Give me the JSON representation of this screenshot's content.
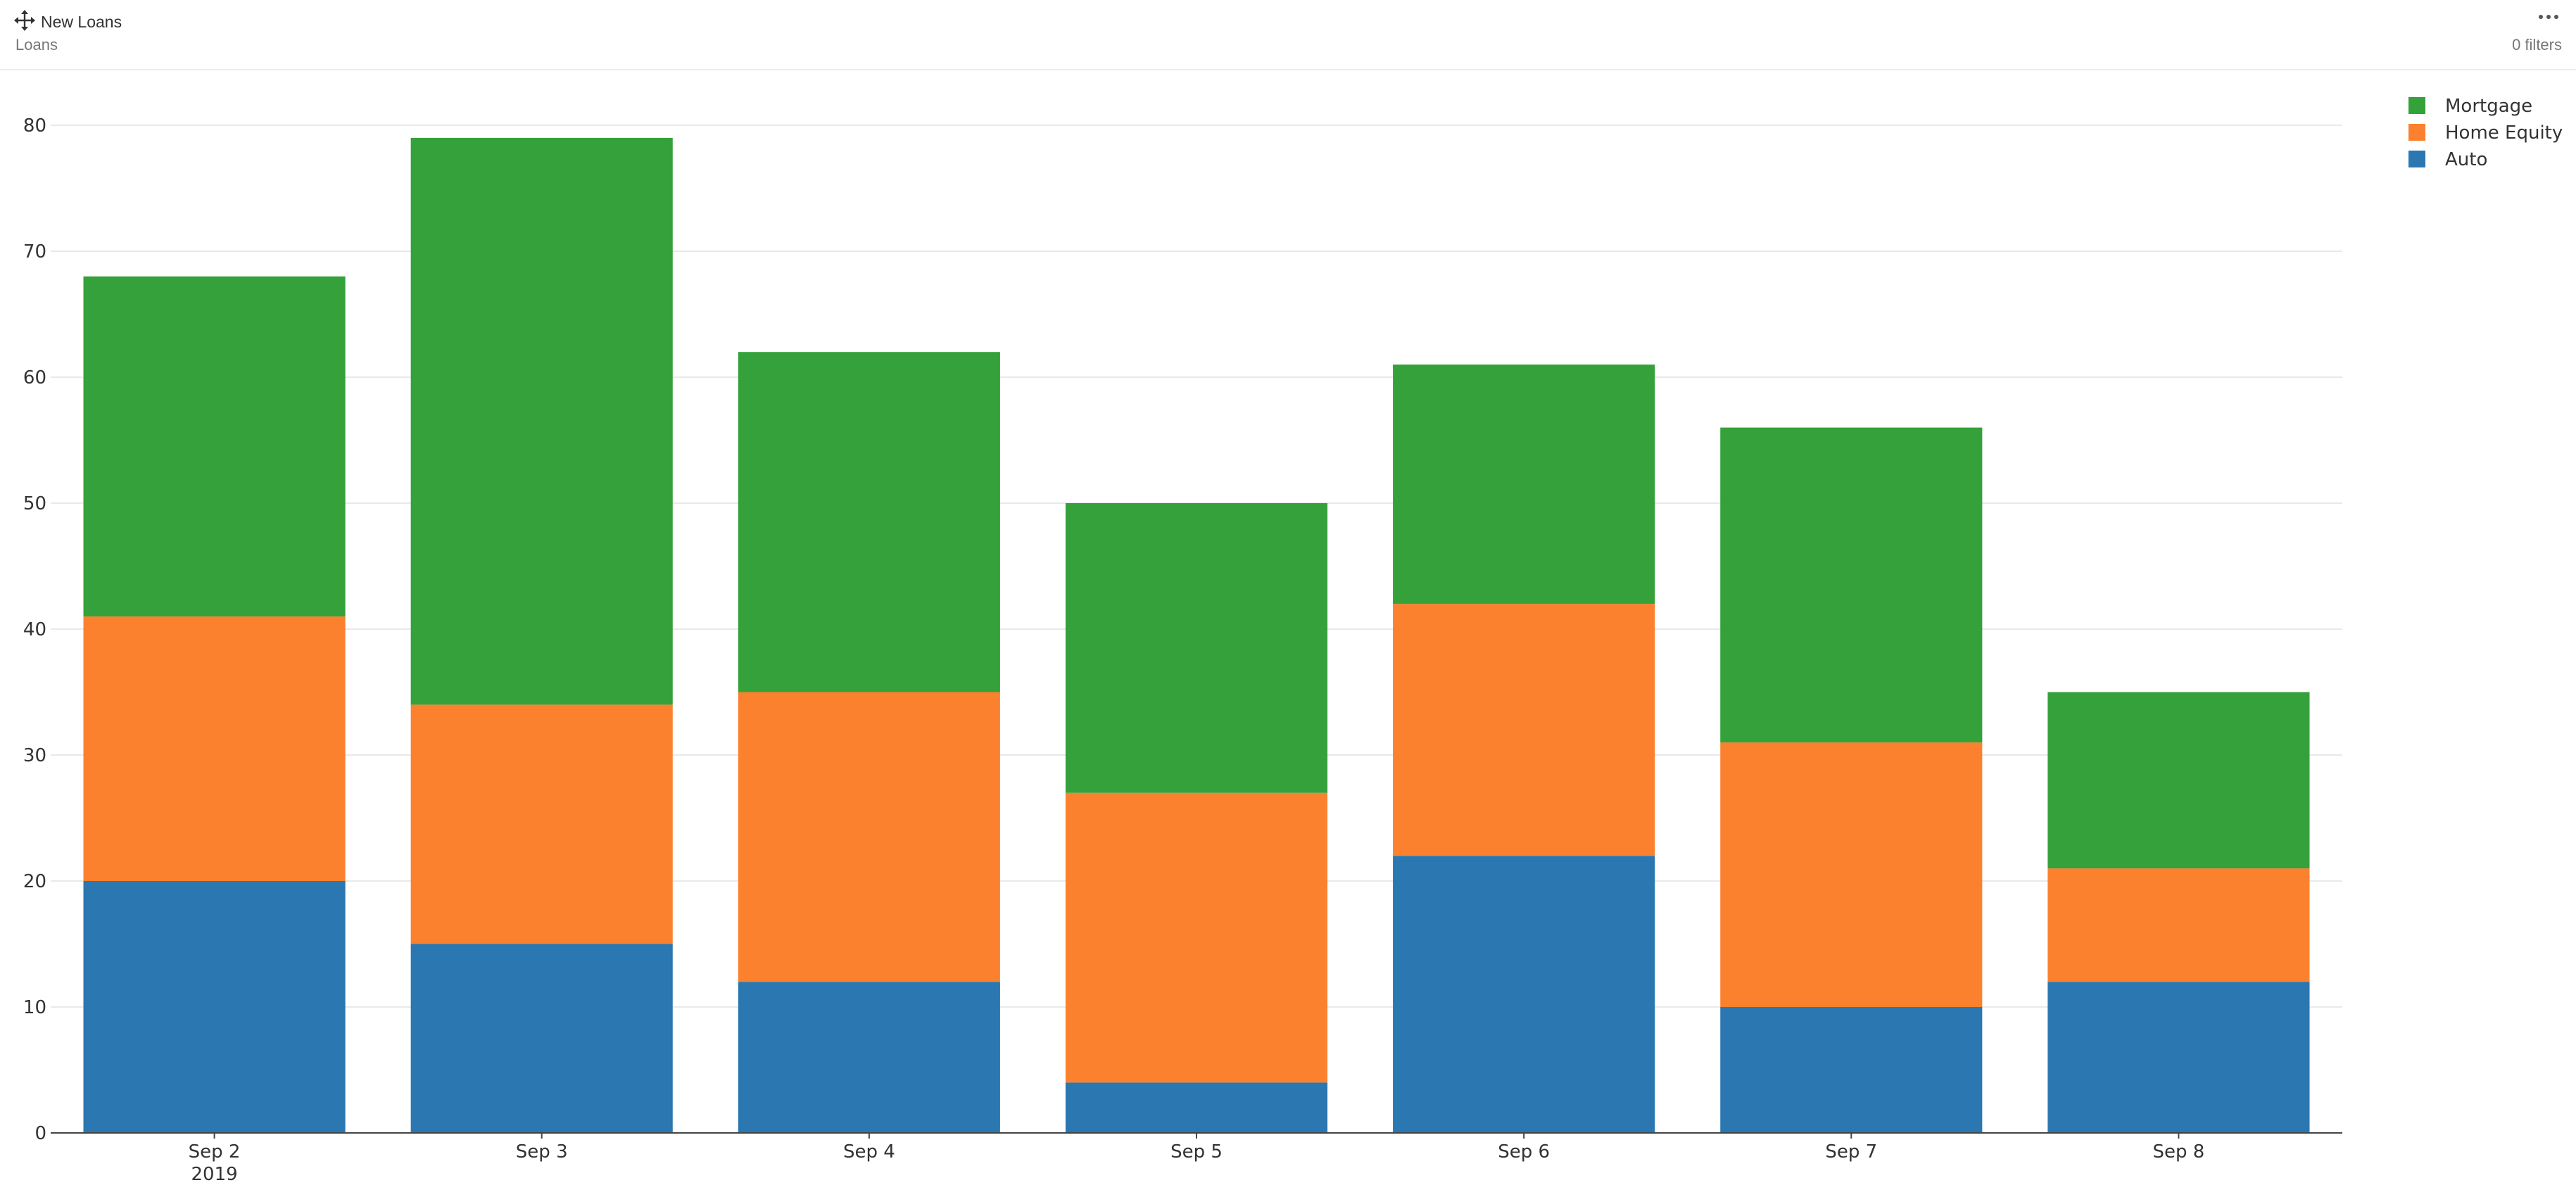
{
  "header": {
    "title": "New Loans",
    "subtitle": "Loans",
    "filters_label": "0 filters",
    "move_icon": "move-icon",
    "menu_icon": "more-horizontal-icon"
  },
  "chart_data": {
    "type": "bar",
    "stacked": true,
    "categories": [
      "Sep 2",
      "Sep 3",
      "Sep 4",
      "Sep 5",
      "Sep 6",
      "Sep 7",
      "Sep 8"
    ],
    "category_sublabels": [
      "2019",
      "",
      "",
      "",
      "",
      "",
      ""
    ],
    "series": [
      {
        "name": "Auto",
        "color": "#2a77b1",
        "values": [
          20,
          15,
          12,
          4,
          22,
          10,
          12
        ]
      },
      {
        "name": "Home Equity",
        "color": "#fc812e",
        "values": [
          21,
          19,
          23,
          23,
          20,
          21,
          9
        ]
      },
      {
        "name": "Mortgage",
        "color": "#35a13a",
        "values": [
          27,
          45,
          27,
          23,
          19,
          25,
          14
        ]
      }
    ],
    "legend_order": [
      "Mortgage",
      "Home Equity",
      "Auto"
    ],
    "legend_position": "top-right",
    "ylim": [
      0,
      80
    ],
    "yticks": [
      0,
      10,
      20,
      30,
      40,
      50,
      60,
      70,
      80
    ],
    "grid": true,
    "xlabel": "",
    "ylabel": ""
  }
}
